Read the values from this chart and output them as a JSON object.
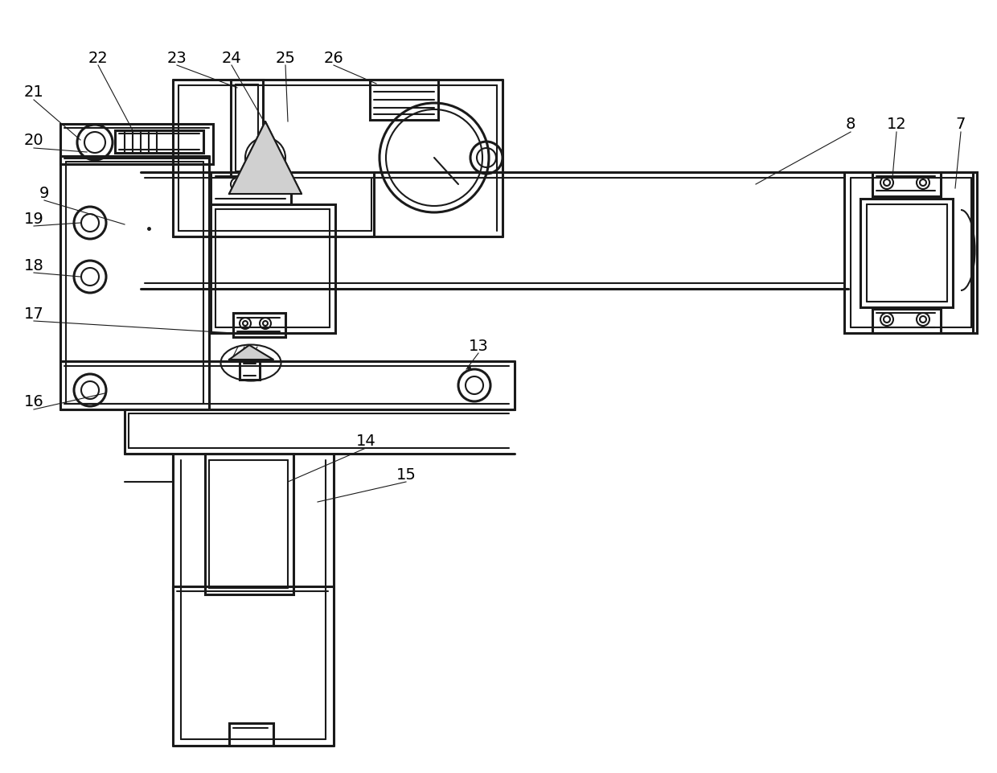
{
  "bg_color": "#ffffff",
  "line_color": "#1a1a1a",
  "lw": 1.5,
  "tlw": 2.2
}
